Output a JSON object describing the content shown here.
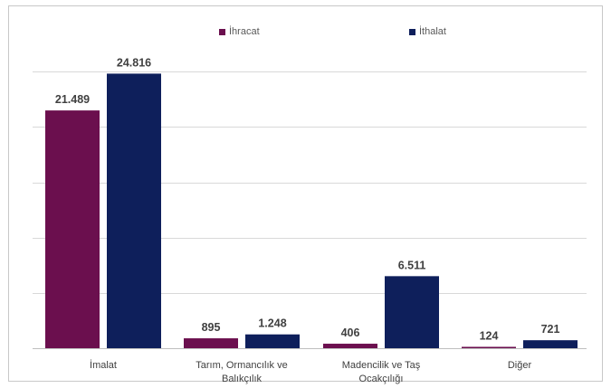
{
  "colors": {
    "ihracat": "#6b0f4e",
    "ithalat": "#0e1f5b",
    "grid": "#d9d9d9",
    "axis": "#bfbfbf"
  },
  "legend": {
    "ihracat_label": "İhracat",
    "ithalat_label": "İthalat"
  },
  "chart_data": {
    "type": "bar",
    "title": "",
    "xlabel": "",
    "ylabel": "",
    "ylim": [
      0,
      30000
    ],
    "grid": true,
    "legend_position": "top",
    "categories": [
      [
        "İmalat"
      ],
      [
        "Tarım, Ormancılık ve",
        "Balıkçılık"
      ],
      [
        "Madencilik ve Taş",
        "Ocakçılığı"
      ],
      [
        "Diğer"
      ]
    ],
    "series": [
      {
        "name": "İhracat",
        "values": [
          21489,
          895,
          406,
          124
        ],
        "labels": [
          "21.489",
          "895",
          "406",
          "124"
        ]
      },
      {
        "name": "İthalat",
        "values": [
          24816,
          1248,
          6511,
          721
        ],
        "labels": [
          "24.816",
          "1.248",
          "6.511",
          "721"
        ]
      }
    ]
  }
}
